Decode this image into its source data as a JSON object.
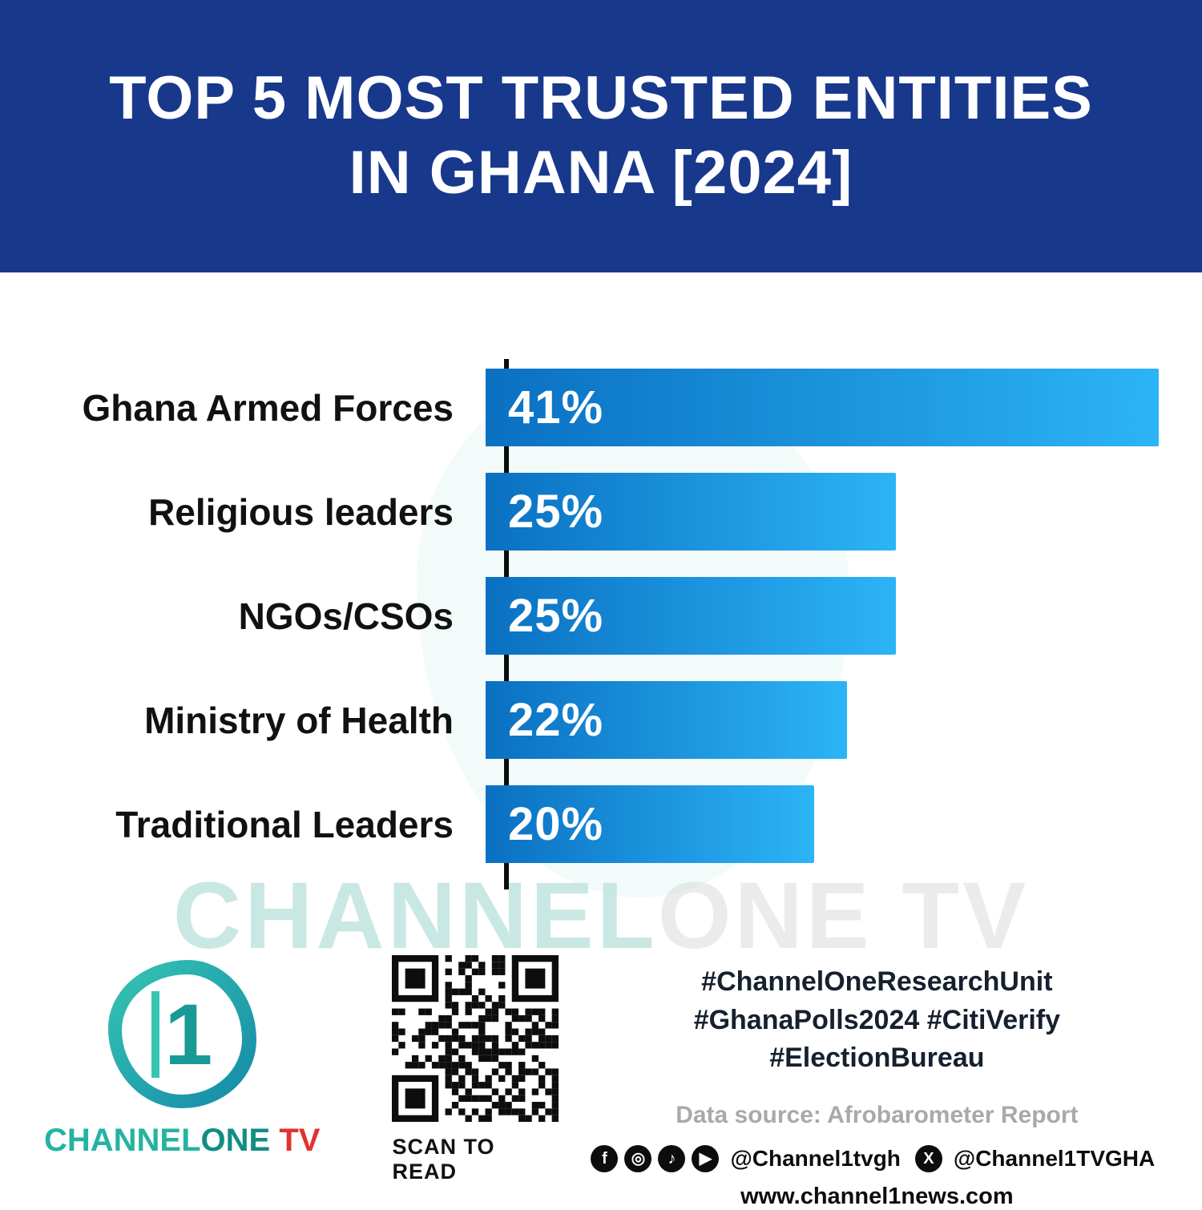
{
  "header": {
    "title_line1": "TOP 5 MOST TRUSTED ENTITIES",
    "title_line2": "IN GHANA [2024]"
  },
  "chart_data": {
    "type": "bar",
    "orientation": "horizontal",
    "title": "Top 5 Most Trusted Entities in Ghana [2024]",
    "categories": [
      "Ghana Armed Forces",
      "Religious leaders",
      "NGOs/CSOs",
      "Ministry of Health",
      "Traditional Leaders"
    ],
    "values": [
      41,
      25,
      25,
      22,
      20
    ],
    "value_labels": [
      "41%",
      "25%",
      "25%",
      "22%",
      "20%"
    ],
    "xlim": [
      0,
      41
    ],
    "grid": false,
    "legend": false,
    "bar_color_start": "#0a70c2",
    "bar_color_end": "#2cb4f6"
  },
  "watermark": {
    "part1": "CHANNEL",
    "part2": "ONE TV"
  },
  "footer": {
    "logo": {
      "one_glyph": "1",
      "brand_channel": "CHANNEL",
      "brand_one": "ONE",
      "brand_tv": " TV"
    },
    "qr_caption": "SCAN TO READ",
    "hashtags": [
      "#ChannelOneResearchUnit",
      "#GhanaPolls2024 #CitiVerify",
      "#ElectionBureau"
    ],
    "data_source": "Data source: Afrobarometer Report",
    "social": {
      "handle1": "@Channel1tvgh",
      "handle2": "@Channel1TVGHA"
    },
    "website": "www.channel1news.com",
    "icons": {
      "facebook": "f",
      "instagram": "◎",
      "tiktok": "♪",
      "youtube": "▶",
      "x": "X"
    }
  },
  "colors": {
    "header_bg": "#18388C",
    "bar_gradient_start": "#0a70c2",
    "bar_gradient_end": "#2cb4f6",
    "label_text": "#111111",
    "brand_teal": "#25b3a1",
    "brand_red": "#e23131",
    "source_gray": "#a9a9a9"
  }
}
